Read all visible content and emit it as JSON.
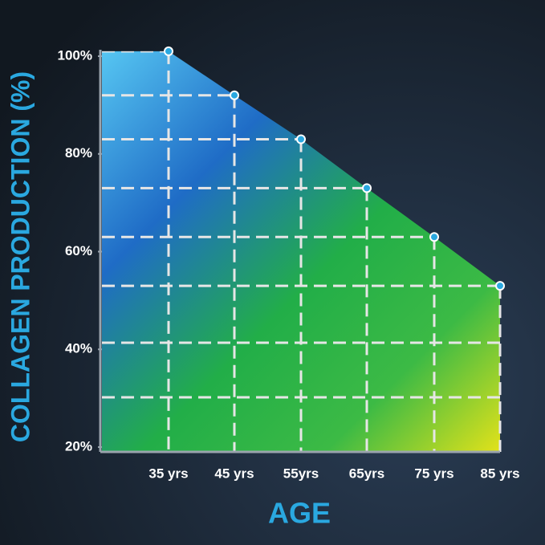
{
  "chart_data": {
    "type": "area",
    "x_label": "AGE",
    "y_label": "COLLAGEN PRODUCTION (%)",
    "categories": [
      "35 yrs",
      "45 yrs",
      "55yrs",
      "65yrs",
      "75 yrs",
      "85 yrs"
    ],
    "values": [
      101,
      92,
      83,
      73,
      63,
      53
    ],
    "ylim": [
      20,
      100
    ],
    "yticks": [
      {
        "value": 100,
        "label": "100%"
      },
      {
        "value": 80,
        "label": "80%"
      },
      {
        "value": 60,
        "label": "60%"
      },
      {
        "value": 40,
        "label": "40%"
      },
      {
        "value": 20,
        "label": "20%"
      }
    ],
    "color": "#2aa8e0",
    "grid": true
  }
}
